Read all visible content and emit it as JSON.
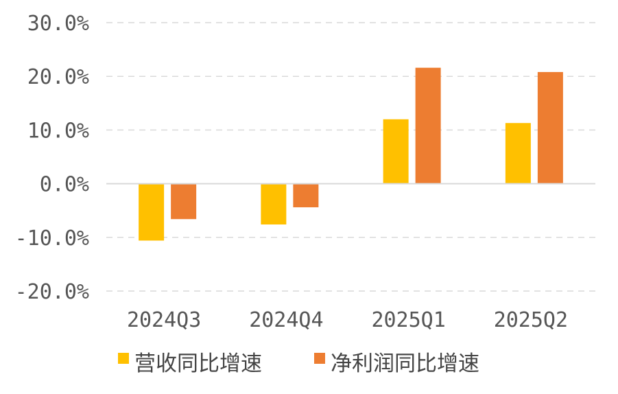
{
  "chart_data": {
    "type": "bar",
    "title": "",
    "xlabel": "",
    "ylabel": "",
    "categories": [
      "2024Q3",
      "2024Q4",
      "2025Q1",
      "2025Q2"
    ],
    "series": [
      {
        "name": "营收同比增速",
        "color": "#FFC000",
        "values": [
          -10.6,
          -7.6,
          12.0,
          11.3
        ]
      },
      {
        "name": "净利润同比增速",
        "color": "#ED7D31",
        "values": [
          -6.6,
          -4.4,
          21.6,
          20.8
        ]
      }
    ],
    "ylim": [
      -20,
      30
    ],
    "yticks": [
      30,
      20,
      10,
      0,
      -10,
      -20
    ],
    "ytick_labels": [
      "30.0%",
      "20.0%",
      "10.0%",
      "0.0%",
      "-10.0%",
      "-20.0%"
    ],
    "grid": true,
    "legend": "bottom"
  }
}
